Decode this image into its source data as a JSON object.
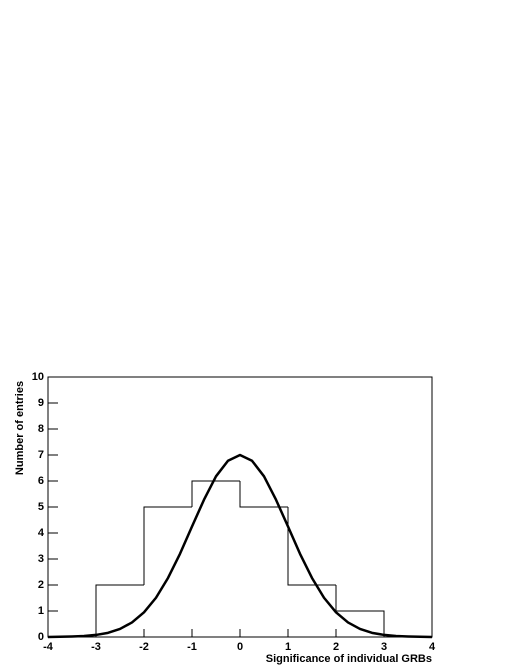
{
  "chart_data": {
    "type": "histogram",
    "xlabel": "Significance of individual GRBs",
    "ylabel": "Number of entries",
    "bins": [
      -3,
      -2,
      -1,
      0,
      1,
      2,
      3
    ],
    "values": [
      2,
      5,
      6,
      5,
      2,
      1
    ],
    "color": "#000000",
    "xlim": [
      -4,
      4
    ],
    "ylim": [
      0,
      10
    ],
    "xticks": [
      -4,
      -3,
      -2,
      -1,
      0,
      1,
      2,
      3,
      4
    ],
    "yticks": [
      0,
      1,
      2,
      3,
      4,
      5,
      6,
      7,
      8,
      9,
      10
    ],
    "fit": {
      "type": "line",
      "color": "#000000",
      "x": [
        -4,
        -3.75,
        -3.5,
        -3.25,
        -3,
        -2.75,
        -2.5,
        -2.25,
        -2,
        -1.75,
        -1.5,
        -1.25,
        -1,
        -0.75,
        -0.5,
        -0.25,
        0,
        0.25,
        0.5,
        0.75,
        1,
        1.25,
        1.5,
        1.75,
        2,
        2.25,
        2.5,
        2.75,
        3,
        3.25,
        3.5,
        3.75,
        4
      ],
      "values": [
        0,
        0.01,
        0.02,
        0.04,
        0.08,
        0.16,
        0.31,
        0.56,
        0.95,
        1.51,
        2.27,
        3.2,
        4.25,
        5.28,
        6.18,
        6.78,
        7,
        6.78,
        6.18,
        5.28,
        4.25,
        3.2,
        2.27,
        1.51,
        0.95,
        0.56,
        0.31,
        0.16,
        0.08,
        0.04,
        0.02,
        0.01,
        0
      ]
    }
  }
}
